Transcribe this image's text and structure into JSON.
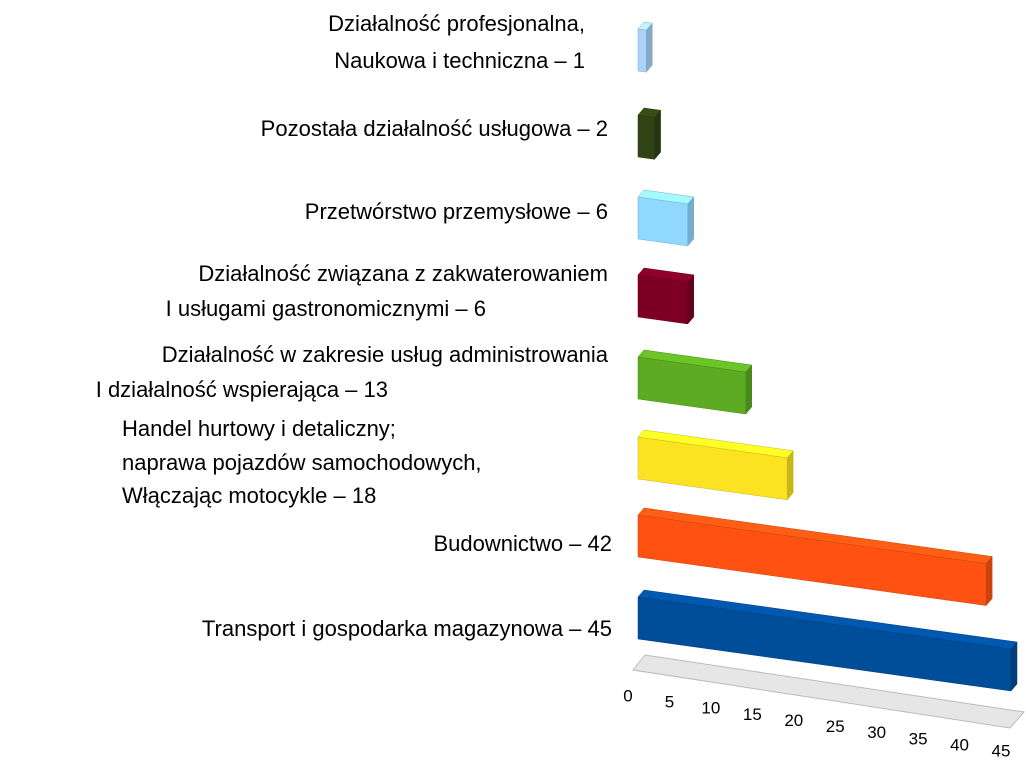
{
  "chart_data": {
    "type": "bar3d",
    "categories": [
      [
        "Działalność profesjonalna,",
        "Naukowa i techniczna – 1"
      ],
      [
        "Pozostała działalność usługowa – 2"
      ],
      [
        "Przetwórstwo przemysłowe – 6"
      ],
      [
        "Działalność związana z zakwaterowaniem",
        "I usługami gastronomicznymi – 6"
      ],
      [
        "Działalność w zakresie usług administrowania",
        "I działalność wspierająca – 13"
      ],
      [
        "Handel hurtowy i detaliczny;",
        "naprawa pojazdów samochodowych,",
        "Włączając motocykle – 18"
      ],
      [
        "Budownictwo – 42"
      ],
      [
        "Transport i gospodarka magazynowa – 45"
      ]
    ],
    "values": [
      1,
      2,
      6,
      6,
      13,
      18,
      42,
      45
    ],
    "colors": [
      "#a9d3f9",
      "#2f4412",
      "#8fd9ff",
      "#7d0022",
      "#5dab22",
      "#fbe322",
      "#ff5212",
      "#004d9a"
    ],
    "xlim": [
      0,
      45
    ],
    "xticks": [
      0,
      5,
      10,
      15,
      20,
      25,
      30,
      35,
      40,
      45
    ]
  }
}
